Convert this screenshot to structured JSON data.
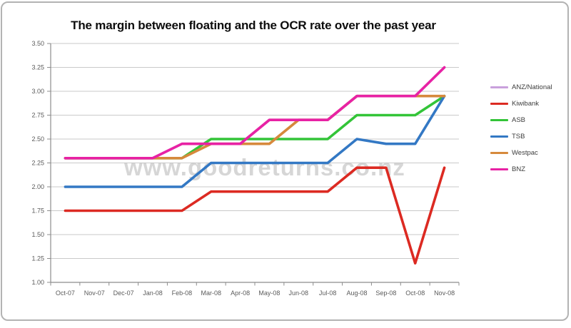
{
  "window": {
    "border_color": "#b3b3b3",
    "background": "#ffffff"
  },
  "watermark": {
    "text": "www.goodreturns.co.nz",
    "color": "#b5b5b5"
  },
  "chart_data": {
    "type": "line",
    "title": "The margin between floating and the OCR rate over the past year",
    "categories": [
      "Oct-07",
      "Nov-07",
      "Dec-07",
      "Jan-08",
      "Feb-08",
      "Mar-08",
      "Apr-08",
      "May-08",
      "Jun-08",
      "Jul-08",
      "Aug-08",
      "Sep-08",
      "Oct-08",
      "Nov-08"
    ],
    "series": [
      {
        "name": "ANZ/National",
        "color": "#c9a0dc",
        "values": [
          2.3,
          2.3,
          2.3,
          2.3,
          2.45,
          2.45,
          2.45,
          2.7,
          2.7,
          2.7,
          2.95,
          2.95,
          2.95,
          3.25
        ]
      },
      {
        "name": "Kiwibank",
        "color": "#dc2a22",
        "values": [
          1.75,
          1.75,
          1.75,
          1.75,
          1.75,
          1.95,
          1.95,
          1.95,
          1.95,
          1.95,
          2.2,
          2.2,
          1.2,
          2.2
        ]
      },
      {
        "name": "ASB",
        "color": "#33c438",
        "values": [
          2.3,
          2.3,
          2.3,
          2.3,
          2.3,
          2.5,
          2.5,
          2.5,
          2.5,
          2.5,
          2.75,
          2.75,
          2.75,
          2.95
        ]
      },
      {
        "name": "TSB",
        "color": "#3378c4",
        "values": [
          2.0,
          2.0,
          2.0,
          2.0,
          2.0,
          2.25,
          2.25,
          2.25,
          2.25,
          2.25,
          2.5,
          2.45,
          2.45,
          2.95
        ]
      },
      {
        "name": "Westpac",
        "color": "#d6893c",
        "values": [
          2.3,
          2.3,
          2.3,
          2.3,
          2.3,
          2.45,
          2.45,
          2.45,
          2.7,
          2.7,
          2.95,
          2.95,
          2.95,
          2.95
        ]
      },
      {
        "name": "BNZ",
        "color": "#e822a4",
        "values": [
          2.3,
          2.3,
          2.3,
          2.3,
          2.45,
          2.45,
          2.45,
          2.7,
          2.7,
          2.7,
          2.95,
          2.95,
          2.95,
          3.25
        ]
      }
    ],
    "ylim": [
      1.0,
      3.5
    ],
    "ytick_step": 0.25,
    "ytick_labels": [
      "3.50",
      "3.25",
      "3.00",
      "2.75",
      "2.50",
      "2.25",
      "2.00",
      "1.75",
      "1.50",
      "1.25",
      "1.00"
    ],
    "xlabel": "",
    "ylabel": "",
    "grid": true,
    "legend_position": "right"
  }
}
